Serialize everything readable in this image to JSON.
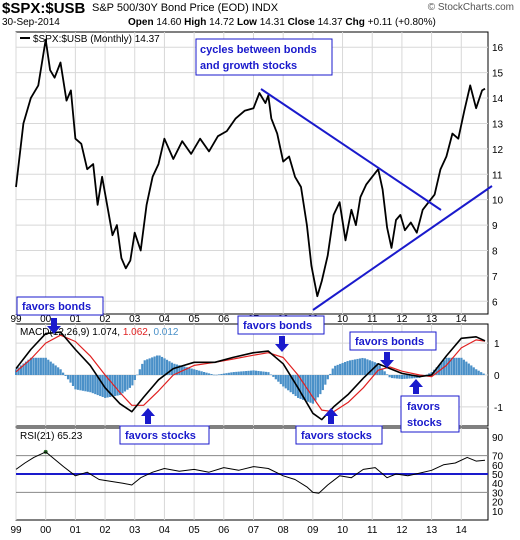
{
  "header": {
    "symbol": "$SPX:$USB",
    "description": "S&P 500/30Y Bond Price (EOD) INDX",
    "date": "30-Sep-2014",
    "ohlc": {
      "open_label": "Open",
      "open": "14.60",
      "high_label": "High",
      "high": "14.72",
      "low_label": "Low",
      "low": "14.31",
      "close_label": "Close",
      "close": "14.37",
      "chg_label": "Chg",
      "chg": "+0.11 (+0.80%)"
    },
    "logo": "© StockCharts.com"
  },
  "colors": {
    "price_line": "#000000",
    "annotation_blue": "#1a1acc",
    "macd_signal": "#e02020",
    "macd_histogram": "#4a90c8",
    "rsi_fill": "#2a6a2a",
    "grid": "#d8d8d8"
  },
  "annotations": {
    "cycles_box": "cycles between bonds and growth stocks",
    "cycles_line1": "cycles between bonds",
    "cycles_line2": "and growth stocks",
    "favors_bonds_1": "favors bonds",
    "favors_bonds_2": "favors bonds",
    "favors_bonds_3": "favors bonds",
    "favors_stocks_1": "favors stocks",
    "favors_stocks_2": "favors stocks",
    "favors_stocks_3a": "favors",
    "favors_stocks_3b": "stocks"
  },
  "chart_data": [
    {
      "type": "line",
      "panel": "price",
      "legend": "$SPX:$USB (Monthly) 14.37",
      "x_ticks": [
        "99",
        "00",
        "01",
        "02",
        "03",
        "04",
        "05",
        "06",
        "07",
        "08",
        "09",
        "10",
        "11",
        "12",
        "13",
        "14"
      ],
      "y_ticks": [
        6,
        7,
        8,
        9,
        10,
        11,
        12,
        13,
        14,
        15,
        16
      ],
      "ylim": [
        5.5,
        16.6
      ],
      "xlim": [
        1999.0,
        2014.9
      ],
      "series": [
        {
          "x": [
            1999.0,
            1999.25,
            1999.5,
            1999.75,
            2000.0,
            2000.15,
            2000.3,
            2000.5,
            2000.7,
            2000.85,
            2001.0,
            2001.2,
            2001.4,
            2001.6,
            2001.75,
            2001.9,
            2002.1,
            2002.25,
            2002.4,
            2002.55,
            2002.7,
            2002.85,
            2003.0,
            2003.2,
            2003.4,
            2003.6,
            2003.8,
            2004.0,
            2004.3,
            2004.6,
            2004.9,
            2005.2,
            2005.5,
            2005.8,
            2006.1,
            2006.4,
            2006.7,
            2007.0,
            2007.2,
            2007.4,
            2007.5,
            2007.6,
            2007.8,
            2008.0,
            2008.2,
            2008.4,
            2008.6,
            2008.8,
            2008.95,
            2009.15,
            2009.3,
            2009.5,
            2009.7,
            2009.9,
            2010.1,
            2010.3,
            2010.45,
            2010.6,
            2010.8,
            2011.0,
            2011.2,
            2011.35,
            2011.5,
            2011.65,
            2011.8,
            2011.95,
            2012.1,
            2012.3,
            2012.5,
            2012.7,
            2012.9,
            2013.1,
            2013.3,
            2013.5,
            2013.7,
            2013.9,
            2014.1,
            2014.3,
            2014.5,
            2014.7,
            2014.8
          ],
          "y": [
            10.5,
            13.0,
            14.0,
            14.5,
            16.3,
            15.1,
            14.8,
            15.4,
            13.9,
            14.3,
            12.4,
            12.2,
            11.2,
            11.4,
            9.8,
            10.9,
            9.6,
            8.6,
            9.0,
            7.7,
            7.3,
            7.6,
            8.7,
            8.0,
            9.8,
            10.9,
            11.4,
            12.4,
            11.6,
            12.3,
            11.8,
            12.4,
            11.9,
            12.5,
            12.7,
            13.2,
            13.5,
            13.6,
            14.2,
            13.8,
            14.1,
            13.2,
            12.6,
            11.5,
            11.7,
            10.9,
            10.5,
            9.0,
            7.4,
            6.2,
            6.8,
            7.8,
            9.4,
            9.9,
            8.4,
            9.6,
            9.0,
            10.1,
            10.6,
            10.9,
            11.2,
            10.4,
            8.9,
            8.1,
            9.2,
            9.4,
            8.8,
            9.1,
            8.7,
            9.6,
            9.9,
            10.2,
            11.2,
            11.7,
            12.6,
            12.4,
            13.5,
            14.5,
            13.6,
            14.3,
            14.37
          ]
        }
      ]
    },
    {
      "type": "line",
      "panel": "macd",
      "legend_label": "MACD(12,26,9)",
      "legend_macd": "1.074",
      "legend_signal": "1.062",
      "legend_hist": "0.012",
      "y_ticks": [
        1,
        0,
        -1
      ],
      "ylim": [
        -1.6,
        1.6
      ],
      "series": [
        {
          "name": "MACD",
          "x": [
            1999.0,
            1999.5,
            2000.0,
            2000.5,
            2001.0,
            2001.5,
            2002.0,
            2002.5,
            2002.9,
            2003.3,
            2003.8,
            2004.3,
            2005.0,
            2005.7,
            2006.3,
            2007.0,
            2007.5,
            2008.0,
            2008.5,
            2009.0,
            2009.3,
            2009.7,
            2010.2,
            2010.7,
            2011.2,
            2011.6,
            2012.0,
            2012.6,
            2013.0,
            2013.5,
            2014.0,
            2014.5,
            2014.8
          ],
          "y": [
            0.2,
            0.8,
            1.3,
            1.35,
            0.8,
            0.3,
            -0.4,
            -0.9,
            -1.15,
            -0.7,
            -0.15,
            0.2,
            0.4,
            0.4,
            0.55,
            0.7,
            0.75,
            0.35,
            -0.4,
            -1.2,
            -1.4,
            -1.0,
            -0.6,
            -0.1,
            0.35,
            0.2,
            0.05,
            -0.05,
            0.0,
            0.6,
            1.15,
            1.2,
            1.07
          ]
        },
        {
          "name": "Signal",
          "x": [
            1999.0,
            1999.5,
            2000.0,
            2000.5,
            2001.0,
            2001.5,
            2002.0,
            2002.5,
            2002.9,
            2003.3,
            2003.8,
            2004.3,
            2005.0,
            2005.7,
            2006.3,
            2007.0,
            2007.5,
            2008.0,
            2008.5,
            2009.0,
            2009.3,
            2009.7,
            2010.2,
            2010.7,
            2011.2,
            2011.6,
            2012.0,
            2012.6,
            2013.0,
            2013.5,
            2014.0,
            2014.5,
            2014.8
          ],
          "y": [
            0.1,
            0.5,
            1.0,
            1.25,
            1.05,
            0.6,
            0.0,
            -0.55,
            -0.95,
            -0.95,
            -0.5,
            0.0,
            0.3,
            0.4,
            0.5,
            0.62,
            0.7,
            0.55,
            0.0,
            -0.7,
            -1.1,
            -1.15,
            -0.85,
            -0.4,
            0.15,
            0.25,
            0.12,
            0.0,
            -0.05,
            0.3,
            0.85,
            1.1,
            1.06
          ]
        }
      ]
    },
    {
      "type": "line",
      "panel": "rsi",
      "legend_label": "RSI(21)",
      "legend_value": "65.23",
      "y_ticks": [
        90,
        70,
        60,
        50,
        40,
        30,
        20,
        10
      ],
      "ylim": [
        0,
        100
      ],
      "reference_lines": [
        70,
        50,
        30
      ],
      "series": [
        {
          "name": "RSI",
          "x": [
            1999.0,
            1999.3,
            1999.6,
            2000.0,
            2000.3,
            2000.6,
            2001.0,
            2001.4,
            2001.8,
            2002.2,
            2002.6,
            2002.9,
            2003.2,
            2003.6,
            2004.0,
            2004.5,
            2005.0,
            2005.5,
            2006.0,
            2006.5,
            2007.0,
            2007.5,
            2008.0,
            2008.4,
            2008.8,
            2009.0,
            2009.2,
            2009.5,
            2009.9,
            2010.3,
            2010.7,
            2011.1,
            2011.5,
            2011.8,
            2012.2,
            2012.6,
            2013.0,
            2013.4,
            2013.8,
            2014.2,
            2014.5,
            2014.8
          ],
          "y": [
            55,
            62,
            68,
            74,
            66,
            58,
            48,
            52,
            44,
            42,
            40,
            38,
            46,
            52,
            56,
            53,
            55,
            52,
            57,
            54,
            58,
            56,
            48,
            44,
            36,
            30,
            29,
            38,
            48,
            46,
            55,
            57,
            46,
            50,
            48,
            51,
            54,
            60,
            62,
            68,
            64,
            65
          ]
        }
      ]
    }
  ]
}
